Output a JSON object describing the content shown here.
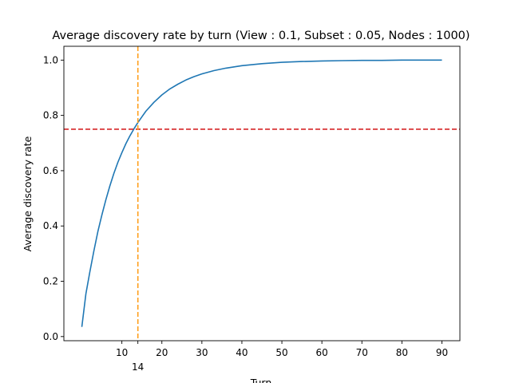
{
  "chart_data": {
    "type": "line",
    "title": "Average discovery rate by turn (View : 0.1, Subset : 0.05, Nodes : 1000)",
    "xlabel": "Turn",
    "ylabel": "Average discovery rate",
    "xlim": [
      -4.5,
      94.5
    ],
    "ylim": [
      -0.015,
      1.05
    ],
    "x_ticks": [
      10,
      14,
      20,
      30,
      40,
      50,
      60,
      70,
      80,
      90
    ],
    "y_ticks": [
      0.0,
      0.2,
      0.4,
      0.6,
      0.8,
      1.0
    ],
    "grid": false,
    "series": [
      {
        "color": "#1f77b4",
        "x": [
          0,
          1,
          2,
          3,
          4,
          5,
          6,
          7,
          8,
          9,
          10,
          11,
          12,
          13,
          14,
          15,
          16,
          18,
          20,
          22,
          24,
          26,
          28,
          30,
          33,
          36,
          40,
          45,
          50,
          55,
          60,
          65,
          70,
          75,
          80,
          85,
          90
        ],
        "y": [
          0.035,
          0.155,
          0.235,
          0.31,
          0.38,
          0.44,
          0.495,
          0.545,
          0.59,
          0.63,
          0.665,
          0.698,
          0.726,
          0.751,
          0.774,
          0.795,
          0.815,
          0.847,
          0.874,
          0.896,
          0.913,
          0.928,
          0.94,
          0.95,
          0.962,
          0.971,
          0.98,
          0.987,
          0.992,
          0.995,
          0.997,
          0.998,
          0.999,
          0.999,
          1.0,
          1.0,
          1.0
        ]
      }
    ],
    "reference_lines": [
      {
        "orientation": "horizontal",
        "value": 0.75,
        "color": "#d62728",
        "style": "dashed"
      },
      {
        "orientation": "vertical",
        "value": 14,
        "color": "#ff9f1c",
        "style": "dashed"
      }
    ]
  }
}
